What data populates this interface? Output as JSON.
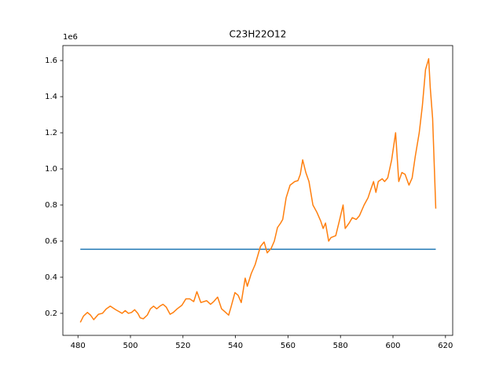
{
  "chart_data": {
    "type": "line",
    "title": "C23H22O12",
    "yaxis_offset": "1e6",
    "xlim": [
      474.25,
      622.75
    ],
    "ylim": [
      0.078,
      1.683
    ],
    "xticks": [
      480,
      500,
      520,
      540,
      560,
      580,
      600,
      620
    ],
    "yticks": [
      0.2,
      0.4,
      0.6,
      0.8,
      {
        "value": 1,
        "label": "1.0"
      },
      1.2,
      1.4,
      1.6
    ],
    "series": [
      {
        "color": "#1f77b4",
        "x": [
          480.9,
          616.3
        ],
        "values": [
          0.555,
          0.555
        ]
      },
      {
        "color": "#ff7f0e",
        "x": [
          480.9,
          482.1,
          483.6,
          484.8,
          486,
          487.8,
          489.3,
          490.8,
          492.3,
          494.4,
          495.6,
          496.8,
          498,
          499.2,
          500.4,
          501.6,
          502.8,
          503.7,
          504.9,
          506.4,
          507.6,
          508.8,
          510,
          511.2,
          512.4,
          513.6,
          515.1,
          516.3,
          517.8,
          519.6,
          521.1,
          522.6,
          524.1,
          525.3,
          526.8,
          529,
          530.5,
          531.7,
          533.2,
          534.7,
          535.9,
          537.4,
          538.3,
          539.8,
          541,
          542.2,
          543.7,
          544.5,
          546,
          547.5,
          549.5,
          550.9,
          552.1,
          553.6,
          554.8,
          556,
          557.2,
          558,
          559.3,
          560.8,
          562.6,
          563.8,
          564.7,
          565.6,
          566.8,
          568,
          569.5,
          571,
          572.5,
          573.4,
          574.3,
          575.5,
          576.4,
          578.2,
          579.7,
          581,
          581.8,
          583.3,
          584.5,
          586,
          587.2,
          589,
          590.5,
          591.4,
          592.6,
          593.5,
          594.4,
          595.9,
          596.8,
          598,
          599.5,
          601,
          602.2,
          603.4,
          604.6,
          606.1,
          607.3,
          608.5,
          610,
          611.2,
          612.4,
          613.6,
          614.2,
          615.1,
          616.3
        ],
        "values": [
          0.15,
          0.185,
          0.205,
          0.19,
          0.165,
          0.195,
          0.2,
          0.225,
          0.24,
          0.22,
          0.21,
          0.2,
          0.215,
          0.2,
          0.205,
          0.22,
          0.2,
          0.175,
          0.17,
          0.19,
          0.225,
          0.24,
          0.225,
          0.24,
          0.25,
          0.235,
          0.195,
          0.205,
          0.225,
          0.245,
          0.28,
          0.28,
          0.265,
          0.32,
          0.26,
          0.27,
          0.25,
          0.265,
          0.29,
          0.225,
          0.21,
          0.19,
          0.235,
          0.315,
          0.3,
          0.26,
          0.395,
          0.35,
          0.42,
          0.47,
          0.57,
          0.595,
          0.535,
          0.56,
          0.6,
          0.675,
          0.7,
          0.72,
          0.84,
          0.91,
          0.93,
          0.935,
          0.97,
          1.05,
          0.98,
          0.93,
          0.8,
          0.76,
          0.71,
          0.67,
          0.7,
          0.6,
          0.62,
          0.63,
          0.72,
          0.8,
          0.67,
          0.7,
          0.73,
          0.72,
          0.74,
          0.8,
          0.84,
          0.88,
          0.93,
          0.87,
          0.93,
          0.945,
          0.93,
          0.95,
          1.05,
          1.2,
          0.93,
          0.98,
          0.97,
          0.91,
          0.95,
          1.07,
          1.2,
          1.35,
          1.55,
          1.61,
          1.45,
          1.28,
          0.78
        ]
      }
    ]
  }
}
